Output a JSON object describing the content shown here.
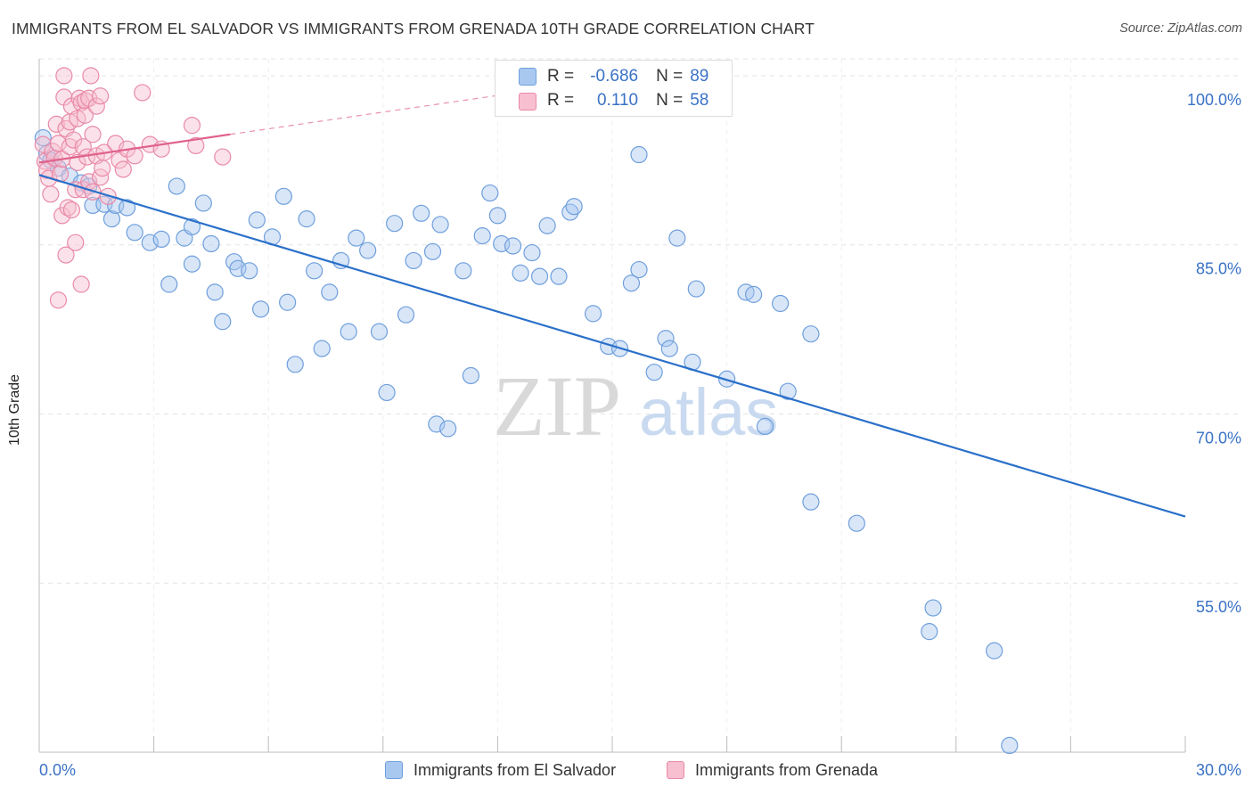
{
  "header": {
    "title": "IMMIGRANTS FROM EL SALVADOR VS IMMIGRANTS FROM GRENADA 10TH GRADE CORRELATION CHART",
    "source": "Source: ZipAtlas.com"
  },
  "legend": {
    "r_label": "R =",
    "n_label": "N =",
    "rows": [
      {
        "r": "-0.686",
        "n": "89",
        "color": "#a9c8f0",
        "border": "#6f9fdc"
      },
      {
        "r": "0.110",
        "n": "58",
        "color": "#f7bfd0",
        "border": "#e98aa8"
      }
    ]
  },
  "watermark": {
    "part1": "ZIP",
    "part2": "atlas"
  },
  "chart_data": {
    "type": "scatter",
    "title": "IMMIGRANTS FROM EL SALVADOR VS IMMIGRANTS FROM GRENADA 10TH GRADE CORRELATION CHART",
    "xlabel": "",
    "ylabel": "10th Grade",
    "xlim": [
      0,
      30
    ],
    "ylim": [
      40,
      101.5
    ],
    "x_ticks": [
      0,
      3,
      6,
      9,
      12,
      15,
      18,
      21,
      24,
      27,
      30
    ],
    "x_tick_labels": {
      "first": "0.0%",
      "last": "30.0%"
    },
    "y_ticks": [
      55,
      70,
      85,
      100
    ],
    "y_tick_labels": [
      "55.0%",
      "70.0%",
      "85.0%",
      "100.0%"
    ],
    "grid": true,
    "legend_position": "bottom",
    "series": [
      {
        "name": "Immigrants from El Salvador",
        "color": "#a9c8f0",
        "stroke": "#6f9fdc",
        "line_color": "#2a70c9",
        "trend": {
          "x": [
            0,
            30
          ],
          "y": [
            91.2,
            60.9
          ]
        },
        "points": [
          [
            0.1,
            94.5
          ],
          [
            0.2,
            93.1
          ],
          [
            0.3,
            92.5
          ],
          [
            0.5,
            91.8
          ],
          [
            0.8,
            91.1
          ],
          [
            1.1,
            90.5
          ],
          [
            1.3,
            90.2
          ],
          [
            1.4,
            88.5
          ],
          [
            1.7,
            88.6
          ],
          [
            1.9,
            87.3
          ],
          [
            2.0,
            88.5
          ],
          [
            2.3,
            88.3
          ],
          [
            2.5,
            86.1
          ],
          [
            2.9,
            85.2
          ],
          [
            3.2,
            85.5
          ],
          [
            3.4,
            81.5
          ],
          [
            3.6,
            90.2
          ],
          [
            3.8,
            85.6
          ],
          [
            4.0,
            86.6
          ],
          [
            4.0,
            83.3
          ],
          [
            4.3,
            88.7
          ],
          [
            4.5,
            85.1
          ],
          [
            4.6,
            80.8
          ],
          [
            4.8,
            78.2
          ],
          [
            5.1,
            83.5
          ],
          [
            5.2,
            82.9
          ],
          [
            5.5,
            82.7
          ],
          [
            5.7,
            87.2
          ],
          [
            5.8,
            79.3
          ],
          [
            6.1,
            85.7
          ],
          [
            6.4,
            89.3
          ],
          [
            6.5,
            79.9
          ],
          [
            6.7,
            74.4
          ],
          [
            7.0,
            87.3
          ],
          [
            7.2,
            82.7
          ],
          [
            7.4,
            75.8
          ],
          [
            7.6,
            80.8
          ],
          [
            7.9,
            83.6
          ],
          [
            8.1,
            77.3
          ],
          [
            8.3,
            85.6
          ],
          [
            8.6,
            84.5
          ],
          [
            8.9,
            77.3
          ],
          [
            9.1,
            71.9
          ],
          [
            9.3,
            86.9
          ],
          [
            9.6,
            78.8
          ],
          [
            9.8,
            83.6
          ],
          [
            10.0,
            87.8
          ],
          [
            10.3,
            84.4
          ],
          [
            10.5,
            86.8
          ],
          [
            10.4,
            69.1
          ],
          [
            10.7,
            68.7
          ],
          [
            11.1,
            82.7
          ],
          [
            11.3,
            73.4
          ],
          [
            11.6,
            85.8
          ],
          [
            11.8,
            89.6
          ],
          [
            12.0,
            87.6
          ],
          [
            12.1,
            85.1
          ],
          [
            12.4,
            84.9
          ],
          [
            12.6,
            82.5
          ],
          [
            12.9,
            84.3
          ],
          [
            13.1,
            82.2
          ],
          [
            13.3,
            86.7
          ],
          [
            13.6,
            82.2
          ],
          [
            13.9,
            87.9
          ],
          [
            14.0,
            88.4
          ],
          [
            14.5,
            78.9
          ],
          [
            14.9,
            76.0
          ],
          [
            15.2,
            75.8
          ],
          [
            15.5,
            81.6
          ],
          [
            15.7,
            82.8
          ],
          [
            15.7,
            93.0
          ],
          [
            16.1,
            73.7
          ],
          [
            16.4,
            76.7
          ],
          [
            16.5,
            75.8
          ],
          [
            16.7,
            85.6
          ],
          [
            17.1,
            74.6
          ],
          [
            17.2,
            81.1
          ],
          [
            18.0,
            73.1
          ],
          [
            18.5,
            80.8
          ],
          [
            18.7,
            80.6
          ],
          [
            19.0,
            68.9
          ],
          [
            19.4,
            79.8
          ],
          [
            19.6,
            72.0
          ],
          [
            20.2,
            77.1
          ],
          [
            20.2,
            62.2
          ],
          [
            21.4,
            60.3
          ],
          [
            23.4,
            52.8
          ],
          [
            23.3,
            50.7
          ],
          [
            25.0,
            49.0
          ],
          [
            25.4,
            40.6
          ]
        ]
      },
      {
        "name": "Immigrants from Grenada",
        "color": "#f7bfd0",
        "stroke": "#e98aa8",
        "line_color": "#e0628d",
        "trend": {
          "x": [
            0,
            5
          ],
          "y": [
            92.3,
            94.8
          ]
        },
        "trend_dashed": {
          "x": [
            5,
            12.5
          ],
          "y": [
            94.8,
            98.5
          ]
        },
        "points": [
          [
            0.1,
            93.9
          ],
          [
            0.15,
            92.4
          ],
          [
            0.2,
            91.6
          ],
          [
            0.25,
            90.9
          ],
          [
            0.3,
            89.5
          ],
          [
            0.35,
            93.3
          ],
          [
            0.4,
            92.7
          ],
          [
            0.45,
            95.7
          ],
          [
            0.5,
            94.0
          ],
          [
            0.55,
            91.3
          ],
          [
            0.6,
            92.6
          ],
          [
            0.6,
            87.6
          ],
          [
            0.65,
            98.1
          ],
          [
            0.65,
            100.0
          ],
          [
            0.7,
            95.3
          ],
          [
            0.7,
            84.1
          ],
          [
            0.75,
            88.3
          ],
          [
            0.8,
            93.7
          ],
          [
            0.8,
            95.9
          ],
          [
            0.85,
            97.3
          ],
          [
            0.85,
            88.1
          ],
          [
            0.9,
            94.3
          ],
          [
            0.95,
            89.9
          ],
          [
            0.95,
            85.2
          ],
          [
            1.0,
            96.2
          ],
          [
            1.0,
            92.3
          ],
          [
            1.05,
            98.0
          ],
          [
            1.1,
            97.6
          ],
          [
            1.1,
            81.5
          ],
          [
            1.15,
            93.7
          ],
          [
            1.15,
            89.9
          ],
          [
            1.2,
            96.5
          ],
          [
            1.2,
            97.8
          ],
          [
            1.25,
            92.8
          ],
          [
            1.3,
            98.0
          ],
          [
            1.3,
            90.6
          ],
          [
            1.35,
            100.0
          ],
          [
            1.4,
            94.8
          ],
          [
            1.4,
            89.7
          ],
          [
            1.5,
            97.3
          ],
          [
            1.5,
            92.9
          ],
          [
            1.6,
            91.0
          ],
          [
            1.6,
            98.2
          ],
          [
            1.65,
            91.8
          ],
          [
            1.7,
            93.2
          ],
          [
            1.8,
            89.3
          ],
          [
            2.0,
            94.0
          ],
          [
            2.1,
            92.5
          ],
          [
            2.2,
            91.7
          ],
          [
            2.3,
            93.5
          ],
          [
            2.5,
            92.9
          ],
          [
            2.7,
            98.5
          ],
          [
            2.9,
            93.9
          ],
          [
            3.2,
            93.5
          ],
          [
            4.0,
            95.6
          ],
          [
            4.1,
            93.8
          ],
          [
            4.8,
            92.8
          ],
          [
            0.5,
            80.1
          ]
        ]
      }
    ]
  },
  "bottom_legend": [
    {
      "label": "Immigrants from El Salvador",
      "color": "#a9c8f0",
      "border": "#6f9fdc"
    },
    {
      "label": "Immigrants from Grenada",
      "color": "#f7bfd0",
      "border": "#e98aa8"
    }
  ]
}
